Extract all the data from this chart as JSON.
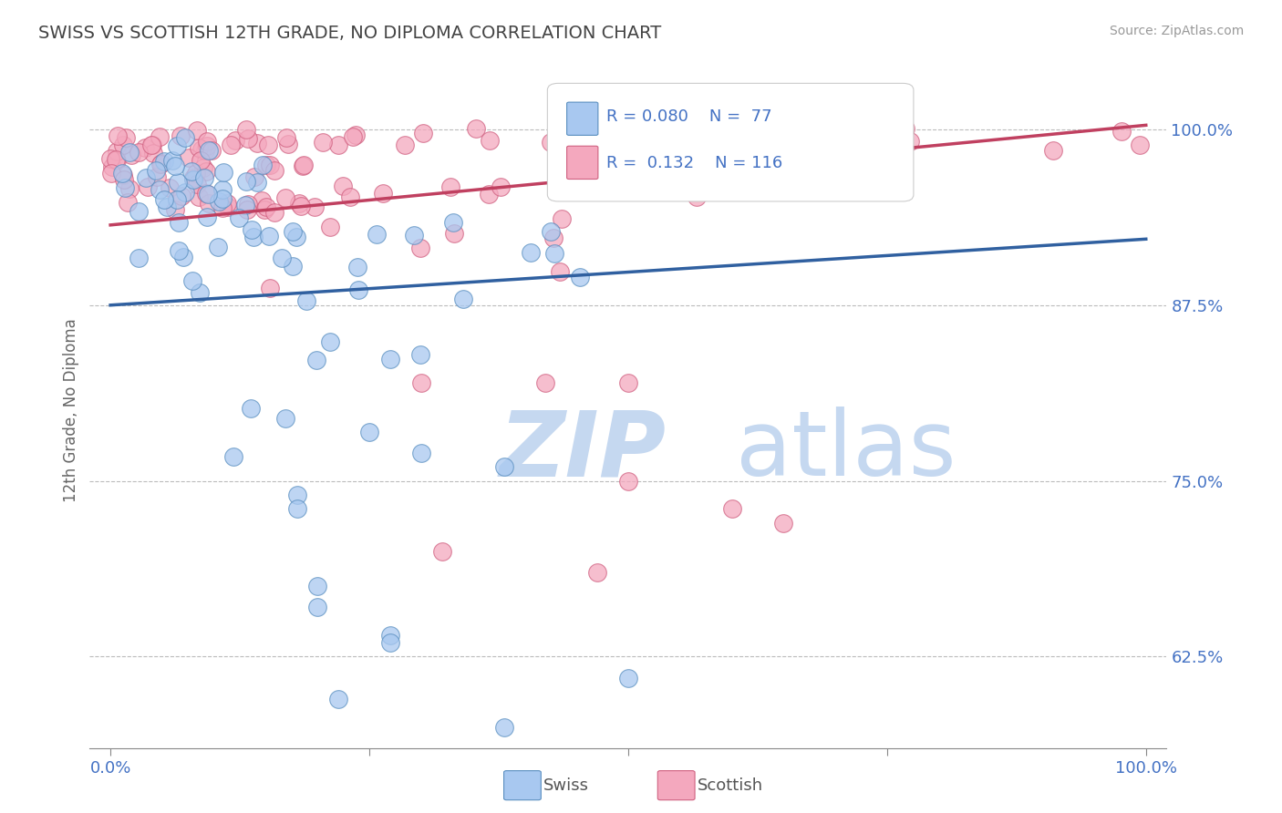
{
  "title": "SWISS VS SCOTTISH 12TH GRADE, NO DIPLOMA CORRELATION CHART",
  "source_text": "Source: ZipAtlas.com",
  "ylabel": "12th Grade, No Diploma",
  "xlim": [
    -0.02,
    1.02
  ],
  "ylim": [
    0.56,
    1.04
  ],
  "yticks": [
    0.625,
    0.75,
    0.875,
    1.0
  ],
  "ytick_labels": [
    "62.5%",
    "75.0%",
    "87.5%",
    "100.0%"
  ],
  "xticks": [
    0.0,
    0.25,
    0.5,
    0.75,
    1.0
  ],
  "xtick_labels": [
    "0.0%",
    "",
    "",
    "",
    "100.0%"
  ],
  "swiss_color": "#A8C8F0",
  "scottish_color": "#F4A8BE",
  "swiss_edge_color": "#5A8FC0",
  "scottish_edge_color": "#D06080",
  "trend_swiss_color": "#3060A0",
  "trend_scottish_color": "#C04060",
  "axis_label_color": "#4472C4",
  "title_color": "#444444",
  "watermark_zip_color": "#C5D8F0",
  "watermark_atlas_color": "#C5D8F0",
  "background_color": "#FFFFFF",
  "swiss_trend_x": [
    0.0,
    1.0
  ],
  "swiss_trend_y": [
    0.875,
    0.922
  ],
  "scottish_trend_x": [
    0.0,
    1.0
  ],
  "scottish_trend_y": [
    0.932,
    1.003
  ]
}
